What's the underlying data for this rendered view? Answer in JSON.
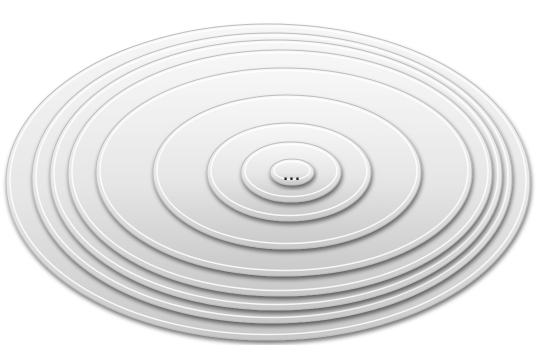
{
  "diagram": {
    "type": "concentric-ellipses",
    "ring_count": 8,
    "center_label": "...",
    "colors": {
      "background": "#ffffff",
      "ring_fill_light": "#f4f4f4",
      "ring_fill_dark": "#c9c9c9",
      "ring_shadow": "#8a8a8a"
    }
  }
}
